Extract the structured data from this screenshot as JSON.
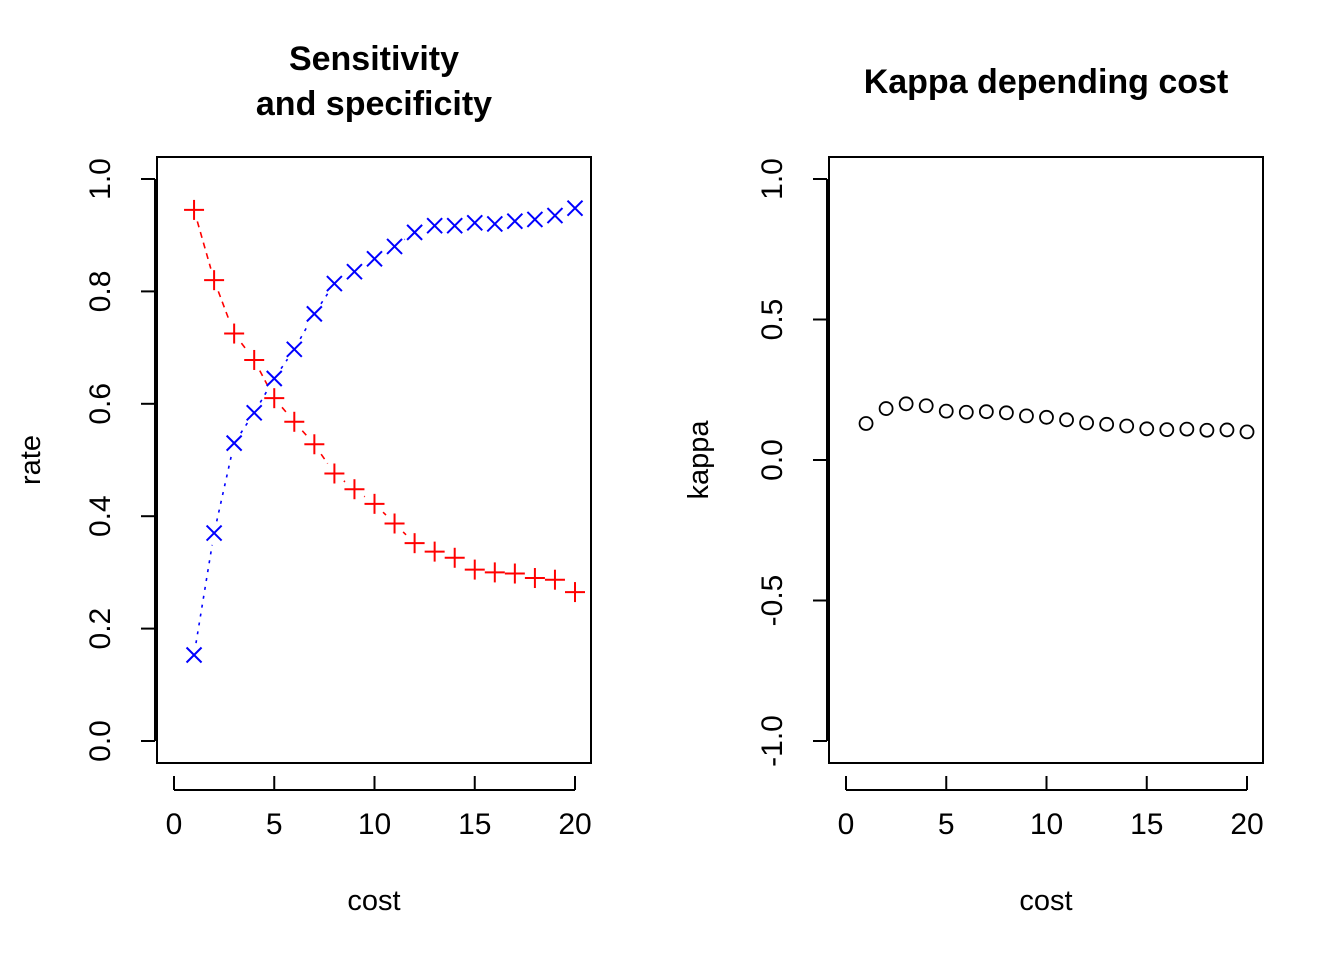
{
  "chart_data": [
    {
      "type": "scatter",
      "title_lines": [
        "Sensitivity",
        "and specificity"
      ],
      "xlabel": "cost",
      "ylabel": "rate",
      "xlim": [
        0,
        20
      ],
      "ylim": [
        0,
        1
      ],
      "xticks": [
        "0",
        "5",
        "10",
        "15",
        "20"
      ],
      "yticks": [
        "0.0",
        "0.2",
        "0.4",
        "0.6",
        "0.8",
        "1.0"
      ],
      "grid": false,
      "x": [
        1,
        2,
        3,
        4,
        5,
        6,
        7,
        8,
        9,
        10,
        11,
        12,
        13,
        14,
        15,
        16,
        17,
        18,
        19,
        20
      ],
      "series": [
        {
          "marker": "plus",
          "line": "dashed",
          "color": "#FF0000",
          "values": [
            0.945,
            0.82,
            0.725,
            0.678,
            0.61,
            0.568,
            0.528,
            0.476,
            0.448,
            0.422,
            0.387,
            0.352,
            0.337,
            0.326,
            0.305,
            0.3,
            0.298,
            0.29,
            0.287,
            0.265
          ]
        },
        {
          "marker": "cross",
          "line": "dotted",
          "color": "#0000FF",
          "values": [
            0.153,
            0.37,
            0.53,
            0.584,
            0.645,
            0.697,
            0.76,
            0.814,
            0.835,
            0.858,
            0.88,
            0.905,
            0.917,
            0.917,
            0.922,
            0.92,
            0.925,
            0.928,
            0.935,
            0.948
          ]
        }
      ]
    },
    {
      "type": "scatter",
      "title_lines": [
        "Kappa depending cost"
      ],
      "xlabel": "cost",
      "ylabel": "kappa",
      "xlim": [
        0,
        20
      ],
      "ylim": [
        -1,
        1
      ],
      "xticks": [
        "0",
        "5",
        "10",
        "15",
        "20"
      ],
      "yticks": [
        "-1.0",
        "-0.5",
        "0.0",
        "0.5",
        "1.0"
      ],
      "grid": false,
      "x": [
        1,
        2,
        3,
        4,
        5,
        6,
        7,
        8,
        9,
        10,
        11,
        12,
        13,
        14,
        15,
        16,
        17,
        18,
        19,
        20
      ],
      "series": [
        {
          "marker": "circle",
          "color": "#000000",
          "values": [
            0.13,
            0.183,
            0.2,
            0.193,
            0.174,
            0.17,
            0.172,
            0.168,
            0.157,
            0.152,
            0.143,
            0.132,
            0.127,
            0.121,
            0.111,
            0.108,
            0.11,
            0.106,
            0.107,
            0.1
          ]
        }
      ]
    }
  ]
}
